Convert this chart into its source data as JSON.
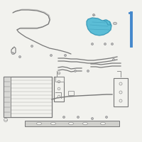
{
  "bg_color": "#f2f2ee",
  "lc": "#909090",
  "lc2": "#777777",
  "hc": "#5bbdd6",
  "hc_edge": "#3a9ab8",
  "blue_rod": "#4488cc",
  "white": "#f2f2ee"
}
